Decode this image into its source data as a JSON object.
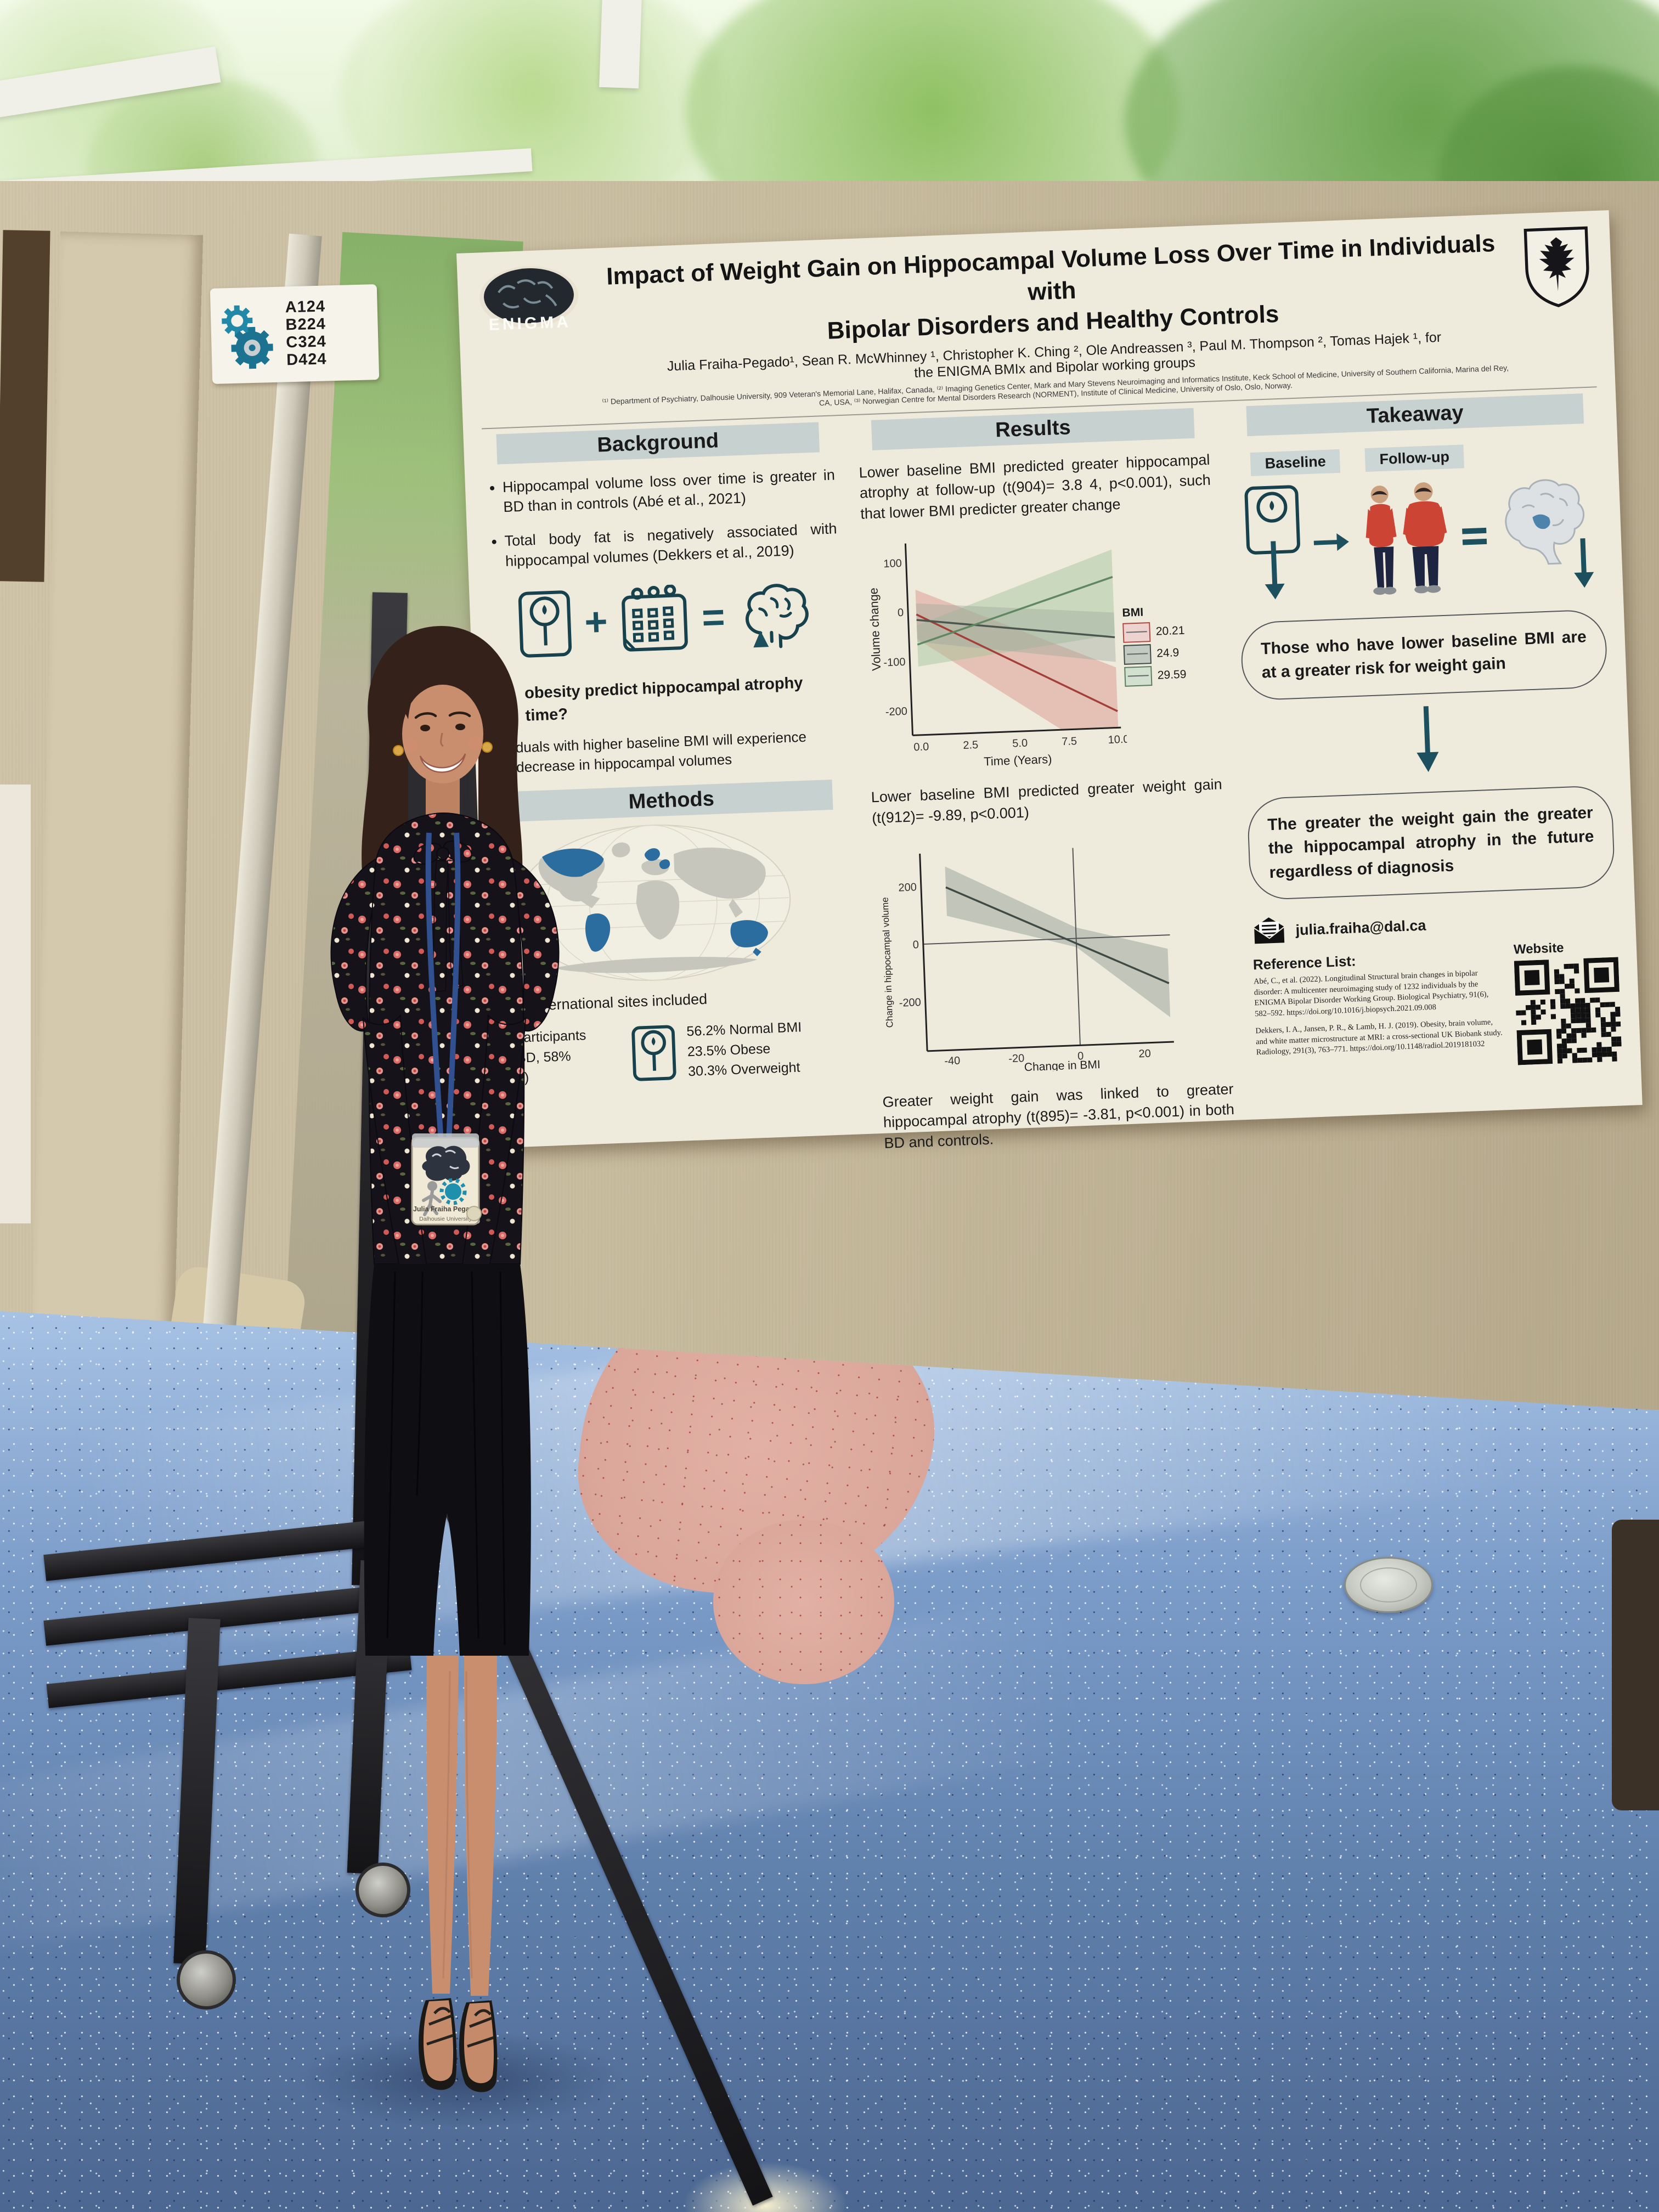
{
  "scene": {
    "room_sign": {
      "codes": [
        "A124",
        "B224",
        "C324",
        "D424"
      ]
    },
    "badge": {
      "name": "Julia Fraiha Pegado",
      "org": "Dalhousie University"
    }
  },
  "icons": {
    "plus": "+",
    "equals": "=",
    "arrow_right": "→",
    "arrow_down": "↓"
  },
  "colors": {
    "teal_accent": "#1d505e",
    "section_bar": "#c6d1d0",
    "poster_bg": "#efebdc",
    "wall": "#c7bb9e",
    "floor_blue": "#6d8fbd",
    "floor_blob_pink": "#dba79b",
    "highlight_map_blue": "#2b6d9e",
    "legend_red": "#b04a43",
    "legend_green": "#5e7d62"
  },
  "poster": {
    "logo_text": "ENIGMA",
    "title_lines": [
      "Impact of Weight Gain on Hippocampal Volume Loss Over Time in Individuals with",
      "Bipolar Disorders and Healthy Controls"
    ],
    "authors_line1": "Julia Fraiha-Pegado¹, Sean R. McWhinney ¹, Christopher K. Ching ², Ole Andreassen ³, Paul M. Thompson ², Tomas Hajek ¹, for",
    "authors_line2": "the ENIGMA BMIx and Bipolar working groups",
    "affiliations": "⁽¹⁾ Department of Psychiatry, Dalhousie University, 909 Veteran's Memorial Lane, Halifax, Canada, ⁽²⁾ Imaging Genetics Center, Mark and Mary Stevens Neuroimaging and Informatics Institute, Keck School of Medicine, University of Southern California, Marina del Rey, CA, USA, ⁽³⁾ Norwegian Centre for Mental Disorders Research (NORMENT), Institute of Clinical Medicine, University of Oslo, Oslo, Norway.",
    "background": {
      "header": "Background",
      "bullets": [
        "Hippocampal volume loss over time is greater in BD than in controls (Abé et al., 2021)",
        "Total body fat is negatively associated with hippocampal volumes (Dekkers et al., 2019)"
      ],
      "question_fragments": [
        "obesity predict hippocampal atrophy",
        "time?"
      ],
      "hypothesis_fragments": [
        "duals with higher baseline BMI will experience",
        "decrease in hippocampal volumes"
      ]
    },
    "methods": {
      "header": "Methods",
      "map_caption": "15 international sites included",
      "participants_fragments": [
        "4  participants",
        "3  BD,  58%",
        "ale)"
      ],
      "bmi_stats": [
        "56.2% Normal BMI",
        "23.5% Obese",
        "30.3% Overweight"
      ]
    },
    "results": {
      "header": "Results",
      "finding1": "Lower baseline BMI predicted greater hippocampal atrophy at follow-up (t(904)= 3.8 4,  p<0.001), such that lower BMI predicter greater change",
      "finding2": "Lower baseline BMI predicted greater weight gain (t(912)= -9.89, p<0.001)",
      "finding3": "Greater weight gain was linked to greater hippocampal atrophy (t(895)= -3.81, p<0.001) in both BD and controls."
    },
    "takeaway": {
      "header": "Takeaway",
      "baseline_label": "Baseline",
      "followup_label": "Follow-up",
      "box1": "Those who have lower baseline BMI are at a greater risk for weight gain",
      "box2": "The greater the weight gain the greater the hippocampal atrophy in the future regardless of diagnosis",
      "email": "julia.fraiha@dal.ca",
      "website_label": "Website",
      "references_header": "Reference List:",
      "references": [
        "Abé, C., et al. (2022). Longitudinal Structural brain changes in bipolar disorder: A multicenter neuroimaging study of 1232 individuals by the ENIGMA Bipolar Disorder Working Group. Biological Psychiatry, 91(6), 582–592. https://doi.org/10.1016/j.biopsych.2021.09.008",
        "Dekkers, I. A., Jansen, P. R., & Lamb, H. J. (2019). Obesity, brain volume, and white matter microstructure at MRI: a cross-sectional UK Biobank study. Radiology, 291(3), 763–771. https://doi.org/10.1148/radiol.2019181032"
      ]
    }
  },
  "chart_data": [
    {
      "type": "line",
      "title": "",
      "xlabel": "Time (Years)",
      "ylabel": "Volume change",
      "x_ticks": [
        "0.0",
        "2.5",
        "5.0",
        "7.5",
        "10.0"
      ],
      "y_ticks": [
        "100",
        "0",
        "-100",
        "-200"
      ],
      "xlim": [
        0,
        10
      ],
      "ylim": [
        -280,
        110
      ],
      "legend_title": "BMI",
      "legend_position": "right",
      "grid": false,
      "confidence_bands": true,
      "series": [
        {
          "name": "20.21",
          "color": "#a33f39",
          "x": [
            0,
            10
          ],
          "y": [
            -5,
            -215
          ]
        },
        {
          "name": "24.9",
          "color": "#4a564e",
          "x": [
            0,
            10
          ],
          "y": [
            -35,
            -75
          ]
        },
        {
          "name": "29.59",
          "color": "#5f8762",
          "x": [
            0,
            10
          ],
          "y": [
            -85,
            35
          ]
        }
      ]
    },
    {
      "type": "line",
      "title": "",
      "xlabel": "Change in BMI",
      "ylabel": "Change in hippocampal volume",
      "x_ticks": [
        "-40",
        "-20",
        "0",
        "20"
      ],
      "y_ticks": [
        "200",
        "0",
        "-200"
      ],
      "xlim": [
        -45,
        32
      ],
      "ylim": [
        -420,
        330
      ],
      "grid": false,
      "confidence_bands": true,
      "series": [
        {
          "name": "fit",
          "color": "#3f4a44",
          "x": [
            -40,
            30
          ],
          "y": [
            210,
            -215
          ]
        }
      ]
    }
  ]
}
